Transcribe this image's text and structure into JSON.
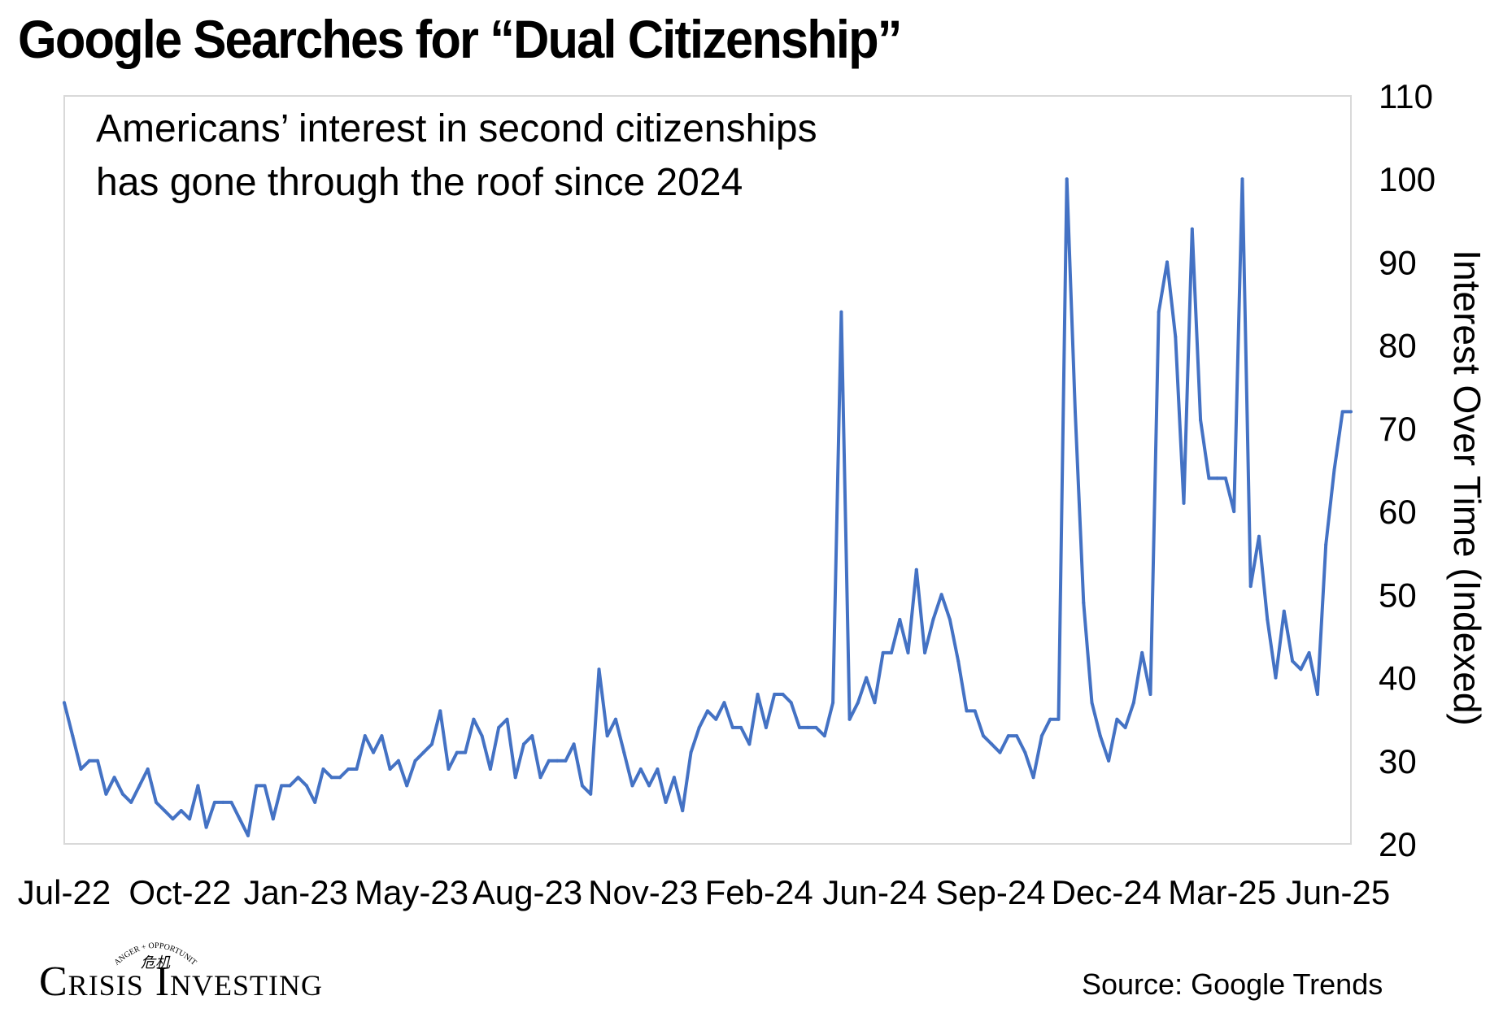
{
  "title": "Google Searches for “Dual Citizenship”",
  "source": "Source: Google Trends",
  "logo": {
    "text": "Crisis Investing",
    "tagline": "DANGER + OPPORTUNITY",
    "glyphs": "危机"
  },
  "chart_data": {
    "type": "line",
    "title": "Google Searches for “Dual Citizenship”",
    "annotation": [
      "Americans’ interest in second citizenships",
      "has gone through the roof since 2024"
    ],
    "ylabel": "Interest Over Time (Indexed)",
    "xlabel": "",
    "ylim": [
      20,
      110
    ],
    "yticks": [
      20,
      30,
      40,
      50,
      60,
      70,
      80,
      90,
      100,
      110
    ],
    "xtick_labels": [
      "Jul-22",
      "Oct-22",
      "Jan-23",
      "May-23",
      "Aug-23",
      "Nov-23",
      "Feb-24",
      "Jun-24",
      "Sep-24",
      "Dec-24",
      "Mar-25",
      "Jun-25"
    ],
    "grid": false,
    "legend": "none",
    "line_color": "#4472C4",
    "series": [
      {
        "values": [
          37,
          33,
          29,
          30,
          30,
          26,
          28,
          26,
          25,
          27,
          29,
          25,
          24,
          23,
          24,
          23,
          27,
          22,
          25,
          25,
          25,
          23,
          21,
          27,
          27,
          23,
          27,
          27,
          28,
          27,
          25,
          29,
          28,
          28,
          29,
          29,
          33,
          31,
          33,
          29,
          30,
          27,
          30,
          31,
          32,
          36,
          29,
          31,
          31,
          35,
          33,
          29,
          34,
          35,
          28,
          32,
          33,
          28,
          30,
          30,
          30,
          32,
          27,
          26,
          41,
          33,
          35,
          31,
          27,
          29,
          27,
          29,
          25,
          28,
          24,
          31,
          34,
          36,
          35,
          37,
          34,
          34,
          32,
          38,
          34,
          38,
          38,
          37,
          34,
          34,
          34,
          33,
          37,
          84,
          35,
          37,
          40,
          37,
          43,
          43,
          47,
          43,
          53,
          43,
          47,
          50,
          47,
          42,
          36,
          36,
          33,
          32,
          31,
          33,
          33,
          31,
          28,
          33,
          35,
          35,
          100,
          72,
          49,
          37,
          33,
          30,
          35,
          34,
          37,
          43,
          38,
          84,
          90,
          81,
          61,
          94,
          71,
          64,
          64,
          64,
          60,
          100,
          51,
          57,
          47,
          40,
          48,
          42,
          41,
          43,
          38,
          56,
          65,
          72,
          72
        ]
      }
    ]
  }
}
